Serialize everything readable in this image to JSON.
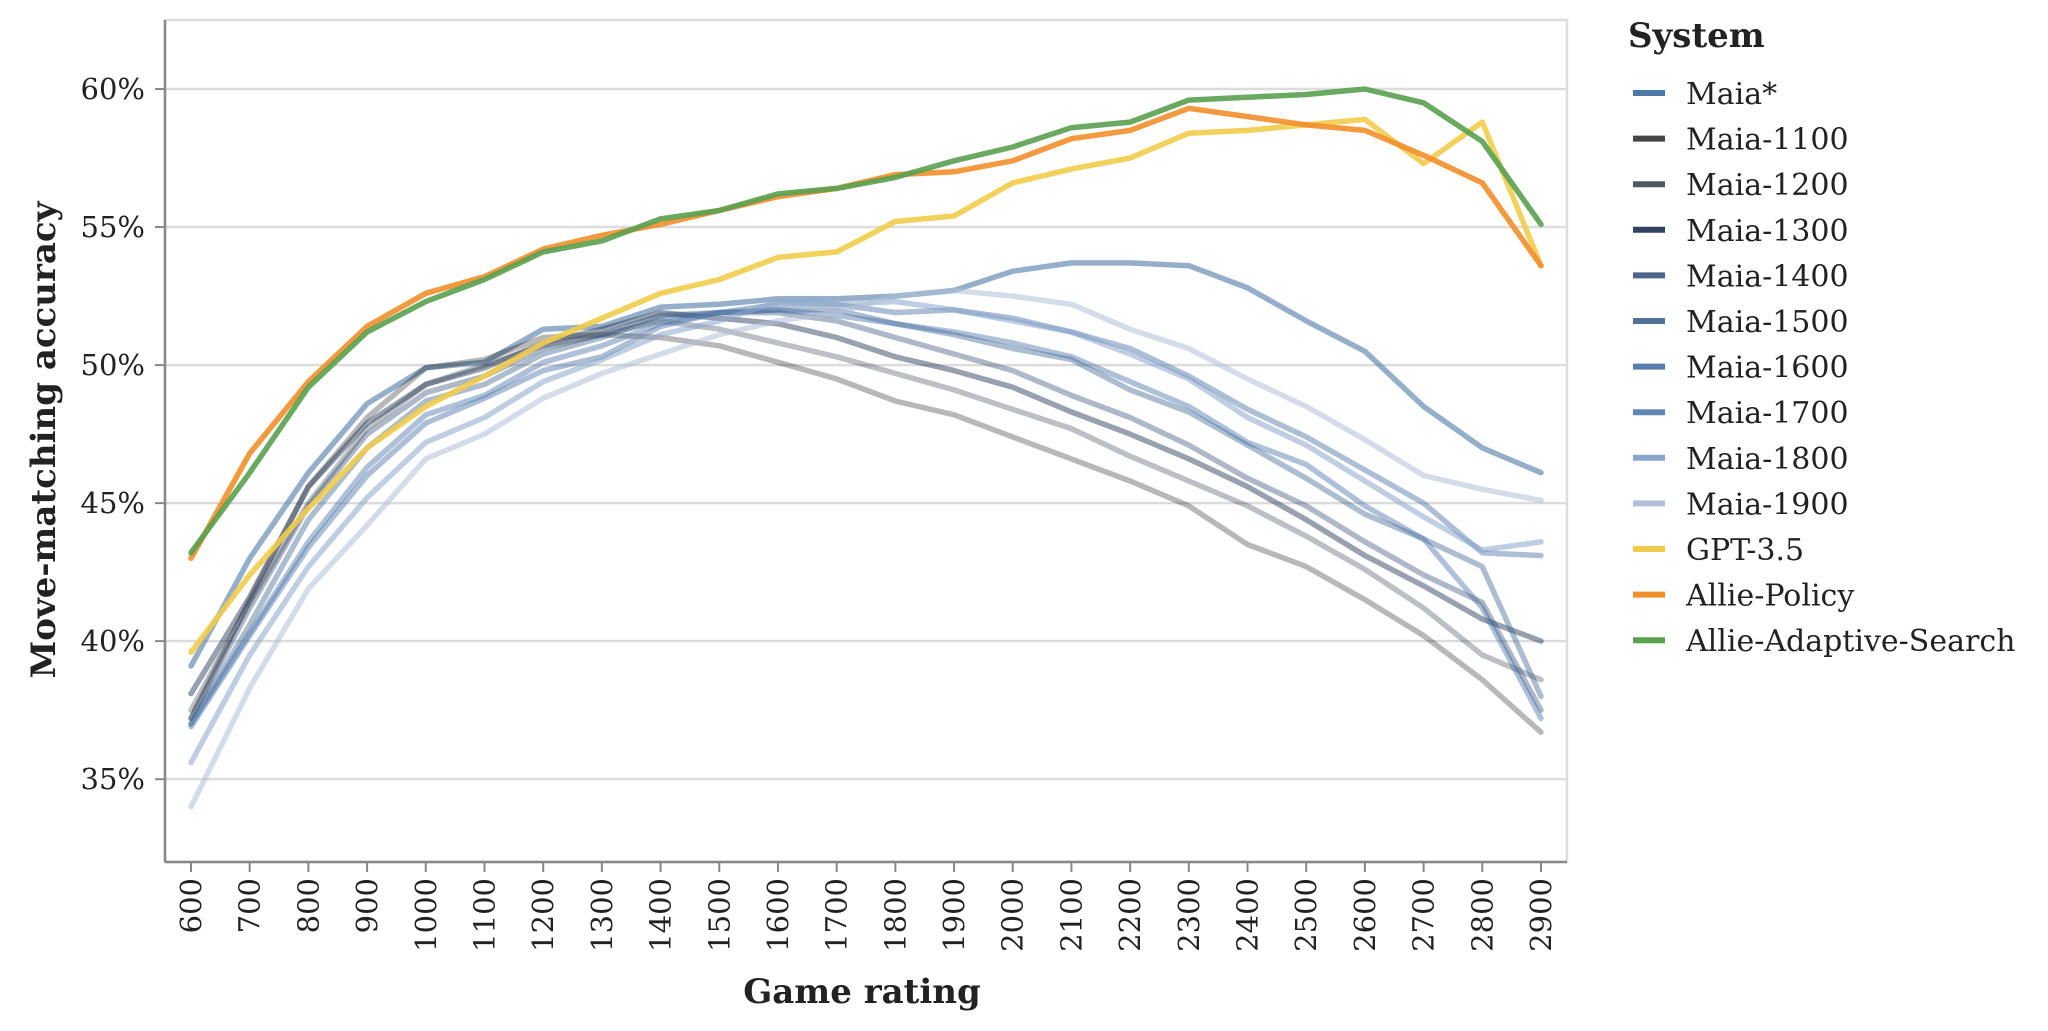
{
  "chart_data": {
    "type": "line",
    "xlabel": "Game rating",
    "ylabel": "Move-matching accuracy",
    "x": [
      600,
      700,
      800,
      900,
      1000,
      1100,
      1200,
      1300,
      1400,
      1500,
      1600,
      1700,
      1800,
      1900,
      2000,
      2100,
      2200,
      2300,
      2400,
      2500,
      2600,
      2700,
      2800,
      2900
    ],
    "xlim": [
      600,
      2900
    ],
    "ylim": [
      32.0,
      62.5
    ],
    "y_ticks": [
      35,
      40,
      45,
      50,
      55,
      60
    ],
    "y_tick_labels": [
      "35%",
      "40%",
      "45%",
      "50%",
      "55%",
      "60%"
    ],
    "grid": "horizontal",
    "legend": {
      "title": "System",
      "position": "right"
    },
    "series": [
      {
        "name": "Maia*",
        "color": "#4e79a7",
        "opacity": 0.6,
        "values": [
          39.1,
          43.0,
          46.1,
          48.6,
          49.9,
          50.1,
          51.3,
          51.4,
          52.1,
          52.2,
          52.4,
          52.4,
          52.5,
          52.7,
          53.4,
          53.7,
          53.7,
          53.6,
          52.8,
          51.6,
          50.5,
          48.5,
          47.0,
          46.1
        ]
      },
      {
        "name": "Maia-1100",
        "color": "#000000",
        "opacity": 0.28,
        "values": [
          37.2,
          41.5,
          45.6,
          48.1,
          49.9,
          50.2,
          51.0,
          51.1,
          51.0,
          50.7,
          50.1,
          49.5,
          48.7,
          48.2,
          47.4,
          46.6,
          45.8,
          44.9,
          43.5,
          42.7,
          41.5,
          40.2,
          38.6,
          36.7
        ]
      },
      {
        "name": "Maia-1200",
        "color": "#0d1b2a",
        "opacity": 0.28,
        "values": [
          37.5,
          41.4,
          45.0,
          47.7,
          49.3,
          50.0,
          50.7,
          51.1,
          51.6,
          51.3,
          50.8,
          50.3,
          49.7,
          49.1,
          48.4,
          47.7,
          46.7,
          45.8,
          44.9,
          43.8,
          42.6,
          41.2,
          39.5,
          38.6
        ]
      },
      {
        "name": "Maia-1300",
        "color": "#1b2f4f",
        "opacity": 0.45,
        "values": [
          38.1,
          41.6,
          45.6,
          47.9,
          49.3,
          49.9,
          50.8,
          51.3,
          51.9,
          51.7,
          51.5,
          51.0,
          50.3,
          49.8,
          49.2,
          48.3,
          47.5,
          46.6,
          45.6,
          44.4,
          43.1,
          42.0,
          40.8,
          40.0
        ]
      },
      {
        "name": "Maia-1400",
        "color": "#2a4470",
        "opacity": 0.38,
        "values": [
          37.2,
          41.2,
          44.9,
          47.5,
          49.0,
          49.6,
          50.6,
          51.1,
          51.8,
          51.9,
          51.9,
          51.6,
          51.0,
          50.4,
          49.8,
          48.9,
          48.1,
          47.1,
          45.9,
          44.9,
          43.6,
          42.4,
          41.4,
          37.5
        ]
      },
      {
        "name": "Maia-1500",
        "color": "#335a8a",
        "opacity": 0.4,
        "values": [
          37.0,
          40.6,
          44.4,
          47.0,
          48.7,
          49.3,
          50.4,
          51.0,
          51.7,
          51.9,
          52.0,
          52.0,
          51.5,
          51.1,
          50.6,
          50.2,
          49.1,
          48.3,
          47.1,
          45.9,
          44.6,
          43.7,
          42.7,
          38.0
        ]
      },
      {
        "name": "Maia-1600",
        "color": "#3d6ca3",
        "opacity": 0.42,
        "values": [
          37.0,
          40.3,
          43.6,
          46.3,
          48.2,
          48.9,
          50.1,
          50.7,
          51.5,
          51.9,
          52.0,
          51.8,
          51.5,
          51.2,
          50.8,
          50.3,
          49.4,
          48.5,
          47.2,
          46.4,
          44.9,
          43.7,
          41.2,
          37.2
        ]
      },
      {
        "name": "Maia-1700",
        "color": "#5a7fb0",
        "opacity": 0.5,
        "values": [
          36.9,
          40.2,
          43.4,
          46.0,
          47.9,
          48.8,
          49.8,
          50.3,
          51.4,
          51.9,
          52.2,
          52.2,
          51.9,
          52.0,
          51.7,
          51.2,
          50.6,
          49.6,
          48.4,
          47.4,
          46.2,
          45.0,
          43.2,
          43.1
        ]
      },
      {
        "name": "Maia-1800",
        "color": "#8aa5cc",
        "opacity": 0.55,
        "values": [
          35.6,
          39.5,
          42.7,
          45.2,
          47.2,
          48.1,
          49.4,
          50.2,
          51.1,
          51.6,
          52.3,
          52.2,
          52.3,
          52.0,
          51.6,
          51.2,
          50.4,
          49.5,
          48.1,
          47.1,
          45.8,
          44.5,
          43.3,
          43.6
        ]
      },
      {
        "name": "Maia-1900",
        "color": "#b0c0d8",
        "opacity": 0.55,
        "values": [
          34.0,
          38.3,
          41.9,
          44.2,
          46.6,
          47.5,
          48.8,
          49.7,
          50.4,
          51.1,
          51.6,
          51.9,
          52.5,
          52.7,
          52.5,
          52.2,
          51.3,
          50.6,
          49.5,
          48.5,
          47.3,
          46.0,
          45.5,
          45.1
        ]
      },
      {
        "name": "GPT-3.5",
        "color": "#f1cc4b",
        "opacity": 0.9,
        "values": [
          39.6,
          42.4,
          44.8,
          47.0,
          48.5,
          49.6,
          50.8,
          51.7,
          52.6,
          53.1,
          53.9,
          54.1,
          55.2,
          55.4,
          56.6,
          57.1,
          57.5,
          58.4,
          58.5,
          58.7,
          58.9,
          57.3,
          58.8,
          53.6
        ]
      },
      {
        "name": "Allie-Policy",
        "color": "#f28e2b",
        "opacity": 0.9,
        "values": [
          43.0,
          46.8,
          49.4,
          51.4,
          52.6,
          53.2,
          54.2,
          54.7,
          55.1,
          55.6,
          56.1,
          56.4,
          56.9,
          57.0,
          57.4,
          58.2,
          58.5,
          59.3,
          59.0,
          58.7,
          58.5,
          57.6,
          56.6,
          53.6
        ]
      },
      {
        "name": "Allie-Adaptive-Search",
        "color": "#59a14f",
        "opacity": 0.9,
        "values": [
          43.2,
          46.1,
          49.2,
          51.2,
          52.3,
          53.1,
          54.1,
          54.5,
          55.3,
          55.6,
          56.2,
          56.4,
          56.8,
          57.4,
          57.9,
          58.6,
          58.8,
          59.6,
          59.7,
          59.8,
          60.0,
          59.5,
          58.1,
          55.1
        ]
      }
    ]
  }
}
